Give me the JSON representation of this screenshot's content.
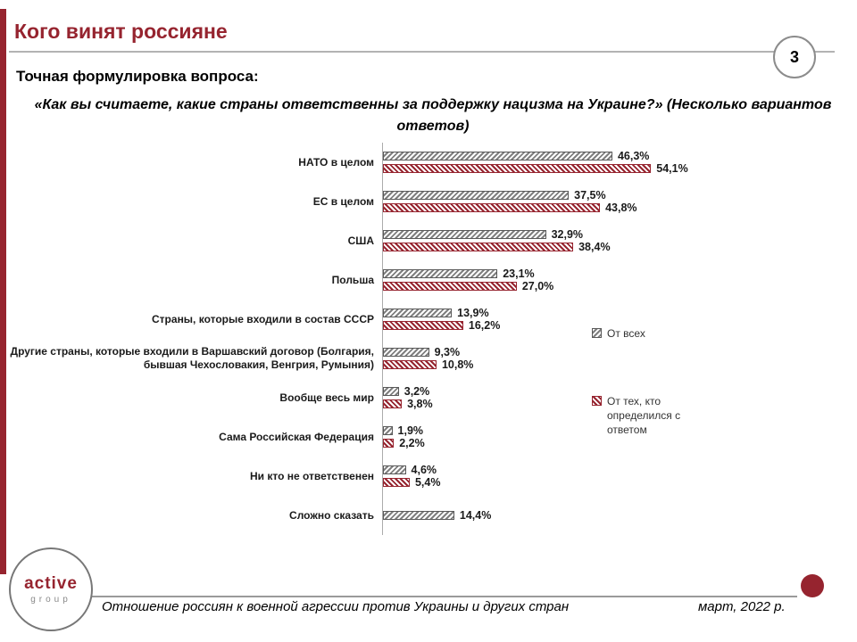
{
  "slide": {
    "title": "Кого винят россияне",
    "page_number": "3",
    "question_label": "Точная формулировка вопроса:",
    "question_text": "«Как вы считаете, какие страны ответственны за поддержку нацизма на Украине?» (Несколько вариантов ответов)"
  },
  "chart_data": {
    "type": "bar",
    "orientation": "horizontal",
    "unit": "%",
    "categories": [
      "НАТО в целом",
      "ЕС в целом",
      "США",
      "Польша",
      "Страны, которые входили в состав СССР",
      "Другие страны, которые входили в Варшавский договор (Болгария, бывшая Чехословакия, Венгрия, Румыния)",
      "Вообще весь мир",
      "Сама Российская Федерация",
      "Ни кто не ответственен",
      "Сложно сказать"
    ],
    "series": [
      {
        "name": "От всех",
        "color": "#7f7f7f",
        "values": [
          46.3,
          37.5,
          32.9,
          23.1,
          13.9,
          9.3,
          3.2,
          1.9,
          4.6,
          14.4
        ],
        "labels": [
          "46,3%",
          "37,5%",
          "32,9%",
          "23,1%",
          "13,9%",
          "9,3%",
          "3,2%",
          "1,9%",
          "4,6%",
          "14,4%"
        ]
      },
      {
        "name": "От тех, кто определился с ответом",
        "color": "#96242f",
        "values": [
          54.1,
          43.8,
          38.4,
          27.0,
          16.2,
          10.8,
          3.8,
          2.2,
          5.4,
          null
        ],
        "labels": [
          "54,1%",
          "43,8%",
          "38,4%",
          "27,0%",
          "16,2%",
          "10,8%",
          "3,8%",
          "2,2%",
          "5,4%",
          null
        ]
      }
    ],
    "xlim": [
      0,
      60
    ],
    "grid": false,
    "legend_position": "right"
  },
  "legend": {
    "series1": "От всех",
    "series2": "От тех, кто определился с ответом"
  },
  "footer": {
    "logo_line1": "active",
    "logo_line2": "group",
    "caption": "Отношение россиян к военной агрессии против Украины и других стран",
    "date": "март, 2022 р."
  },
  "colors": {
    "accent": "#96242f",
    "gray_series": "#7f7f7f"
  }
}
